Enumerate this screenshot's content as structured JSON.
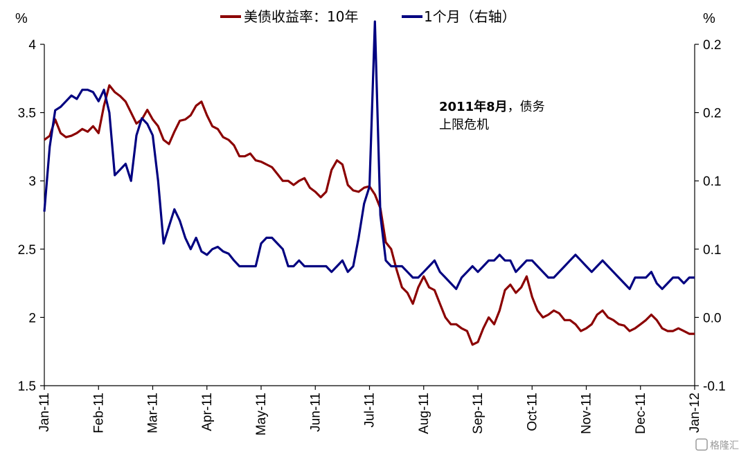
{
  "chart_data": {
    "type": "line",
    "y_left_unit": "%",
    "y_right_unit": "%",
    "ylim_left": [
      1.5,
      4.0
    ],
    "ylim_right": [
      -0.1,
      0.2
    ],
    "yticks_left": [
      "1.5",
      "2",
      "2.5",
      "3",
      "3.5",
      "4"
    ],
    "yticks_right": [
      "-0.1",
      "0.0",
      "0.1",
      "0.1",
      "0.2",
      "0.2"
    ],
    "yticks_right_colors": [
      "#cc0000",
      "#000000",
      "#000000",
      "#000000",
      "#000000",
      "#000000"
    ],
    "x_ticks": [
      "Jan-11",
      "Feb-11",
      "Mar-11",
      "Apr-11",
      "May-11",
      "Jun-11",
      "Jul-11",
      "Aug-11",
      "Sep-11",
      "Oct-11",
      "Nov-11",
      "Dec-11",
      "Jan-12"
    ],
    "annotation": {
      "bold": "2011年8月",
      "rest": "，债务",
      "line2": "上限危机"
    },
    "watermark": "格隆汇",
    "series": [
      {
        "name": "美债收益率：10年",
        "axis": "left",
        "color": "#8b0000",
        "x": [
          0,
          0.1,
          0.2,
          0.3,
          0.4,
          0.5,
          0.6,
          0.7,
          0.8,
          0.9,
          1.0,
          1.1,
          1.2,
          1.3,
          1.4,
          1.5,
          1.6,
          1.7,
          1.8,
          1.9,
          2.0,
          2.1,
          2.2,
          2.3,
          2.4,
          2.5,
          2.6,
          2.7,
          2.8,
          2.9,
          3.0,
          3.1,
          3.2,
          3.3,
          3.4,
          3.5,
          3.6,
          3.7,
          3.8,
          3.9,
          4.0,
          4.1,
          4.2,
          4.3,
          4.4,
          4.5,
          4.6,
          4.7,
          4.8,
          4.9,
          5.0,
          5.1,
          5.2,
          5.3,
          5.4,
          5.5,
          5.6,
          5.7,
          5.8,
          5.9,
          6.0,
          6.1,
          6.2,
          6.3,
          6.4,
          6.5,
          6.6,
          6.7,
          6.8,
          6.9,
          7.0,
          7.1,
          7.2,
          7.3,
          7.4,
          7.5,
          7.6,
          7.7,
          7.8,
          7.9,
          8.0,
          8.1,
          8.2,
          8.3,
          8.4,
          8.5,
          8.6,
          8.7,
          8.8,
          8.9,
          9.0,
          9.1,
          9.2,
          9.3,
          9.4,
          9.5,
          9.6,
          9.7,
          9.8,
          9.9,
          10.0,
          10.1,
          10.2,
          10.3,
          10.4,
          10.5,
          10.6,
          10.7,
          10.8,
          10.9,
          11.0,
          11.1,
          11.2,
          11.3,
          11.4,
          11.5,
          11.6,
          11.7,
          11.8,
          11.9,
          12.0
        ],
        "values": [
          3.3,
          3.33,
          3.45,
          3.35,
          3.32,
          3.33,
          3.35,
          3.38,
          3.36,
          3.4,
          3.35,
          3.55,
          3.7,
          3.65,
          3.62,
          3.58,
          3.5,
          3.42,
          3.45,
          3.52,
          3.45,
          3.4,
          3.3,
          3.27,
          3.36,
          3.44,
          3.45,
          3.48,
          3.55,
          3.58,
          3.48,
          3.4,
          3.38,
          3.32,
          3.3,
          3.26,
          3.18,
          3.18,
          3.2,
          3.15,
          3.14,
          3.12,
          3.1,
          3.05,
          3.0,
          3.0,
          2.97,
          3.0,
          3.02,
          2.95,
          2.92,
          2.88,
          2.92,
          3.08,
          3.15,
          3.12,
          2.97,
          2.93,
          2.92,
          2.95,
          2.96,
          2.9,
          2.8,
          2.55,
          2.5,
          2.35,
          2.22,
          2.18,
          2.1,
          2.22,
          2.3,
          2.22,
          2.2,
          2.1,
          2.0,
          1.95,
          1.95,
          1.92,
          1.9,
          1.8,
          1.82,
          1.92,
          2.0,
          1.95,
          2.05,
          2.2,
          2.24,
          2.18,
          2.22,
          2.3,
          2.15,
          2.05,
          2.0,
          2.02,
          2.05,
          2.03,
          1.98,
          1.98,
          1.95,
          1.9,
          1.92,
          1.95,
          2.02,
          2.05,
          2.0,
          1.98,
          1.95,
          1.94,
          1.9,
          1.92,
          1.95,
          1.98,
          2.02,
          1.98,
          1.92,
          1.9,
          1.9,
          1.92,
          1.9,
          1.88,
          1.88
        ]
      },
      {
        "name": "1个月（右轴）",
        "axis": "right",
        "color": "#000080",
        "x": [
          0,
          0.1,
          0.2,
          0.3,
          0.4,
          0.5,
          0.6,
          0.7,
          0.8,
          0.9,
          1.0,
          1.1,
          1.2,
          1.3,
          1.4,
          1.5,
          1.6,
          1.7,
          1.8,
          1.9,
          2.0,
          2.1,
          2.2,
          2.3,
          2.4,
          2.5,
          2.6,
          2.7,
          2.8,
          2.9,
          3.0,
          3.1,
          3.2,
          3.3,
          3.4,
          3.5,
          3.6,
          3.7,
          3.8,
          3.9,
          4.0,
          4.1,
          4.2,
          4.3,
          4.4,
          4.5,
          4.6,
          4.7,
          4.8,
          4.9,
          5.0,
          5.1,
          5.2,
          5.3,
          5.4,
          5.5,
          5.6,
          5.7,
          5.8,
          5.9,
          6.0,
          6.1,
          6.2,
          6.3,
          6.4,
          6.5,
          6.6,
          6.7,
          6.8,
          6.9,
          7.0,
          7.1,
          7.2,
          7.3,
          7.4,
          7.5,
          7.6,
          7.7,
          7.8,
          7.9,
          8.0,
          8.1,
          8.2,
          8.3,
          8.4,
          8.5,
          8.6,
          8.7,
          8.8,
          8.9,
          9.0,
          9.1,
          9.2,
          9.3,
          9.4,
          9.5,
          9.6,
          9.7,
          9.8,
          9.9,
          10.0,
          10.1,
          10.2,
          10.3,
          10.4,
          10.5,
          10.6,
          10.7,
          10.8,
          10.9,
          11.0,
          11.1,
          11.2,
          11.3,
          11.4,
          11.5,
          11.6,
          11.7,
          11.8,
          11.9,
          12.0
        ],
        "values": [
          0.053,
          0.11,
          0.142,
          0.145,
          0.15,
          0.155,
          0.152,
          0.16,
          0.16,
          0.158,
          0.15,
          0.16,
          0.14,
          0.085,
          0.09,
          0.095,
          0.08,
          0.12,
          0.135,
          0.13,
          0.12,
          0.08,
          0.025,
          0.04,
          0.055,
          0.045,
          0.03,
          0.02,
          0.03,
          0.018,
          0.015,
          0.02,
          0.022,
          0.018,
          0.016,
          0.01,
          0.005,
          0.005,
          0.005,
          0.005,
          0.025,
          0.03,
          0.03,
          0.025,
          0.02,
          0.005,
          0.005,
          0.01,
          0.005,
          0.005,
          0.005,
          0.005,
          0.005,
          0.0,
          0.005,
          0.01,
          0.0,
          0.005,
          0.03,
          0.06,
          0.075,
          0.22,
          0.05,
          0.01,
          0.005,
          0.005,
          0.005,
          0.0,
          -0.005,
          -0.005,
          0.0,
          0.005,
          0.01,
          0.0,
          -0.005,
          -0.01,
          -0.015,
          -0.005,
          0.0,
          0.005,
          0.0,
          0.005,
          0.01,
          0.01,
          0.015,
          0.01,
          0.01,
          0.0,
          0.005,
          0.01,
          0.01,
          0.005,
          0.0,
          -0.005,
          -0.005,
          0.0,
          0.005,
          0.01,
          0.015,
          0.01,
          0.005,
          0.0,
          0.005,
          0.01,
          0.005,
          0.0,
          -0.005,
          -0.01,
          -0.015,
          -0.005,
          -0.005,
          -0.005,
          0.0,
          -0.01,
          -0.015,
          -0.01,
          -0.005,
          -0.005,
          -0.01,
          -0.005,
          -0.005
        ]
      }
    ]
  }
}
